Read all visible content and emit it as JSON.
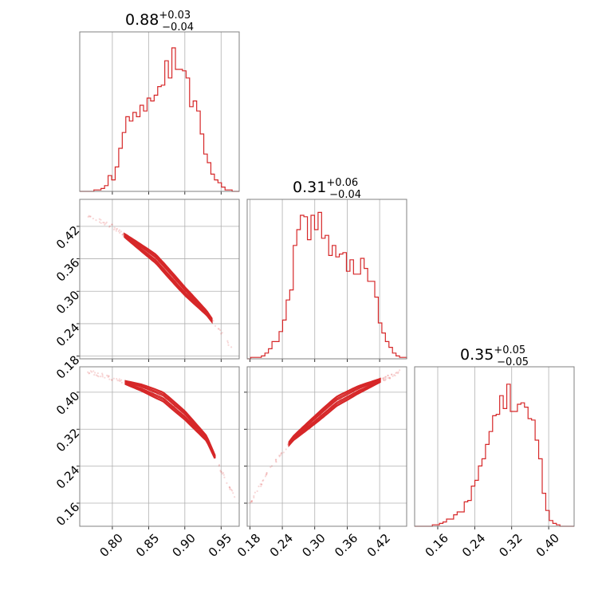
{
  "colors": {
    "series": "#d62728",
    "grid": "#b0b0b0",
    "frame": "#808080"
  },
  "titles": {
    "p0": {
      "value": "0.88",
      "plus": "+0.03",
      "minus": "−0.04"
    },
    "p1": {
      "value": "0.31",
      "plus": "+0.06",
      "minus": "−0.04"
    },
    "p2": {
      "value": "0.35",
      "plus": "+0.05",
      "minus": "−0.05"
    }
  },
  "chart_data": {
    "type": "corner",
    "grid": true,
    "parameters": [
      {
        "range": [
          0.755,
          0.975
        ],
        "ticks": [
          0.8,
          0.85,
          0.9,
          0.95
        ],
        "tick_labels": [
          "0.80",
          "0.85",
          "0.90",
          "0.95"
        ]
      },
      {
        "range": [
          0.175,
          0.47
        ],
        "ticks": [
          0.18,
          0.24,
          0.3,
          0.36,
          0.42
        ],
        "tick_labels": [
          "0.18",
          "0.24",
          "0.30",
          "0.36",
          "0.42"
        ]
      },
      {
        "range": [
          0.11,
          0.455
        ],
        "ticks": [
          0.16,
          0.24,
          0.32,
          0.4
        ],
        "tick_labels": [
          "0.16",
          "0.24",
          "0.32",
          "0.40"
        ]
      }
    ],
    "marginals": [
      {
        "param": 0,
        "bins": 45,
        "normalized_counts": [
          0.0,
          0.0,
          0.0,
          0.0,
          0.01,
          0.01,
          0.02,
          0.04,
          0.11,
          0.08,
          0.17,
          0.3,
          0.41,
          0.52,
          0.49,
          0.55,
          0.52,
          0.6,
          0.56,
          0.65,
          0.63,
          0.67,
          0.73,
          0.74,
          0.91,
          0.79,
          1.0,
          0.85,
          0.85,
          0.84,
          0.79,
          0.59,
          0.63,
          0.56,
          0.4,
          0.26,
          0.2,
          0.12,
          0.08,
          0.06,
          0.03,
          0.01,
          0.01,
          0.0,
          0.0
        ]
      },
      {
        "param": 1,
        "bins": 45,
        "normalized_counts": [
          0.0,
          0.01,
          0.01,
          0.01,
          0.02,
          0.04,
          0.07,
          0.12,
          0.12,
          0.19,
          0.27,
          0.41,
          0.48,
          0.79,
          0.9,
          1.0,
          0.99,
          0.83,
          1.0,
          0.9,
          1.02,
          0.84,
          0.86,
          0.72,
          0.79,
          0.71,
          0.73,
          0.74,
          0.61,
          0.69,
          0.59,
          0.59,
          0.7,
          0.63,
          0.54,
          0.54,
          0.43,
          0.25,
          0.18,
          0.12,
          0.08,
          0.04,
          0.02,
          0.01,
          0.01
        ]
      },
      {
        "param": 2,
        "bins": 45,
        "normalized_counts": [
          0.0,
          0.0,
          0.0,
          0.0,
          0.0,
          0.01,
          0.01,
          0.02,
          0.03,
          0.05,
          0.05,
          0.08,
          0.1,
          0.1,
          0.17,
          0.18,
          0.28,
          0.32,
          0.42,
          0.47,
          0.57,
          0.66,
          0.77,
          0.78,
          0.91,
          0.82,
          0.99,
          0.8,
          0.8,
          0.85,
          0.86,
          0.83,
          0.75,
          0.74,
          0.6,
          0.47,
          0.23,
          0.11,
          0.04,
          0.02,
          0.01,
          0.0,
          0.0,
          0.0,
          0.0
        ]
      }
    ],
    "pairs": [
      {
        "x_param": 0,
        "y_param": 1,
        "relation": "negative",
        "ridge": [
          [
            0.765,
            0.44
          ],
          [
            0.8,
            0.42
          ],
          [
            0.83,
            0.39
          ],
          [
            0.86,
            0.36
          ],
          [
            0.9,
            0.3
          ],
          [
            0.93,
            0.26
          ],
          [
            0.965,
            0.195
          ]
        ]
      },
      {
        "x_param": 0,
        "y_param": 2,
        "relation": "negative-curved",
        "ridge": [
          [
            0.765,
            0.445
          ],
          [
            0.8,
            0.43
          ],
          [
            0.84,
            0.41
          ],
          [
            0.87,
            0.39
          ],
          [
            0.9,
            0.35
          ],
          [
            0.93,
            0.3
          ],
          [
            0.95,
            0.23
          ],
          [
            0.97,
            0.17
          ]
        ]
      },
      {
        "x_param": 1,
        "y_param": 2,
        "relation": "positive-curved",
        "ridge": [
          [
            0.18,
            0.16
          ],
          [
            0.22,
            0.24
          ],
          [
            0.26,
            0.3
          ],
          [
            0.3,
            0.34
          ],
          [
            0.34,
            0.38
          ],
          [
            0.38,
            0.405
          ],
          [
            0.42,
            0.425
          ],
          [
            0.46,
            0.445
          ]
        ]
      }
    ]
  }
}
